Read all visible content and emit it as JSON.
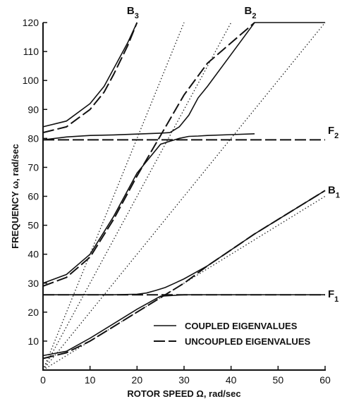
{
  "chart_data": {
    "type": "line",
    "xlabel": "ROTOR SPEED Ω, rad/sec",
    "ylabel": "FREQUENCY ω, rad/sec",
    "xlim": [
      0,
      60
    ],
    "ylim": [
      0,
      120
    ],
    "xticks": [
      0,
      10,
      20,
      30,
      40,
      50,
      60
    ],
    "yticks": [
      0,
      10,
      20,
      30,
      40,
      50,
      60,
      70,
      80,
      90,
      100,
      110,
      120
    ],
    "grid": false,
    "legend_position": "bottom-right",
    "legend": {
      "coupled": "COUPLED EIGENVALUES",
      "uncoupled": "UNCOUPLED EIGENVALUES"
    },
    "curve_labels": [
      {
        "text": "B",
        "sub": "3",
        "x": 20,
        "y": 120
      },
      {
        "text": "B",
        "sub": "2",
        "x": 45,
        "y": 120
      },
      {
        "text": "F",
        "sub": "2",
        "x": 60,
        "y": 82.5
      },
      {
        "text": "B",
        "sub": "1",
        "x": 60,
        "y": 62
      },
      {
        "text": "F",
        "sub": "1",
        "x": 60,
        "y": 26
      }
    ],
    "series": [
      {
        "style": "coupled",
        "x": [
          0,
          5,
          10,
          13,
          15,
          18,
          20
        ],
        "y": [
          84,
          86,
          92,
          98,
          104,
          113,
          120
        ]
      },
      {
        "style": "uncoupled",
        "x": [
          0,
          5,
          10,
          13,
          15,
          18,
          20
        ],
        "y": [
          82,
          84,
          90,
          96,
          102,
          112,
          120
        ]
      },
      {
        "style": "coupled",
        "x": [
          0,
          5,
          10,
          15,
          20,
          25,
          27,
          29,
          31,
          33,
          35,
          40,
          45
        ],
        "y": [
          30,
          33,
          40,
          53,
          68,
          78,
          79,
          80,
          80.7,
          80.8,
          81,
          81.3,
          81.6
        ]
      },
      {
        "style": "coupled",
        "x": [
          0,
          5,
          10,
          15,
          20,
          25,
          27,
          29,
          31,
          33,
          35,
          40,
          45,
          50,
          55,
          60
        ],
        "y": [
          79.5,
          80.5,
          81,
          81.2,
          81.5,
          81.8,
          82,
          84,
          88,
          94,
          98,
          109,
          120,
          120,
          120,
          120
        ]
      },
      {
        "style": "coupled",
        "x": [
          0,
          5,
          10,
          15,
          20,
          25,
          30,
          35,
          40,
          45,
          50,
          55,
          60
        ],
        "y": [
          5,
          6.5,
          11,
          16,
          21,
          25.5,
          26,
          26,
          26,
          26,
          26,
          26,
          26
        ]
      },
      {
        "style": "coupled",
        "x": [
          0,
          5,
          10,
          15,
          20,
          22,
          24,
          26,
          28,
          30,
          35,
          40,
          45,
          50,
          55,
          60
        ],
        "y": [
          26,
          26,
          26,
          26,
          26.2,
          26.6,
          27.5,
          28.5,
          30,
          31.5,
          36,
          41.5,
          47,
          52,
          57,
          62
        ]
      },
      {
        "style": "uncoupled",
        "x": [
          0,
          5,
          10,
          15,
          20,
          25,
          30,
          35,
          40,
          45
        ],
        "y": [
          29,
          32,
          39,
          52,
          67,
          81,
          95,
          106,
          113,
          120
        ]
      },
      {
        "style": "uncoupled",
        "x": [
          0,
          60
        ],
        "y": [
          79.5,
          79.5
        ]
      },
      {
        "style": "uncoupled",
        "x": [
          0,
          60
        ],
        "y": [
          26,
          26
        ]
      },
      {
        "style": "uncoupled",
        "x": [
          0,
          5,
          10,
          15,
          20,
          25,
          30,
          35,
          40,
          45,
          50,
          55,
          60
        ],
        "y": [
          4,
          6,
          10,
          15,
          20,
          25,
          30,
          36,
          41.5,
          47,
          52,
          57,
          62
        ]
      },
      {
        "style": "reference",
        "x": [
          0,
          30
        ],
        "y": [
          0,
          120
        ]
      },
      {
        "style": "reference",
        "x": [
          0,
          40
        ],
        "y": [
          0,
          120
        ]
      },
      {
        "style": "reference",
        "x": [
          0,
          60
        ],
        "y": [
          0,
          120
        ]
      },
      {
        "style": "reference",
        "x": [
          0,
          60
        ],
        "y": [
          0,
          60
        ]
      }
    ]
  }
}
